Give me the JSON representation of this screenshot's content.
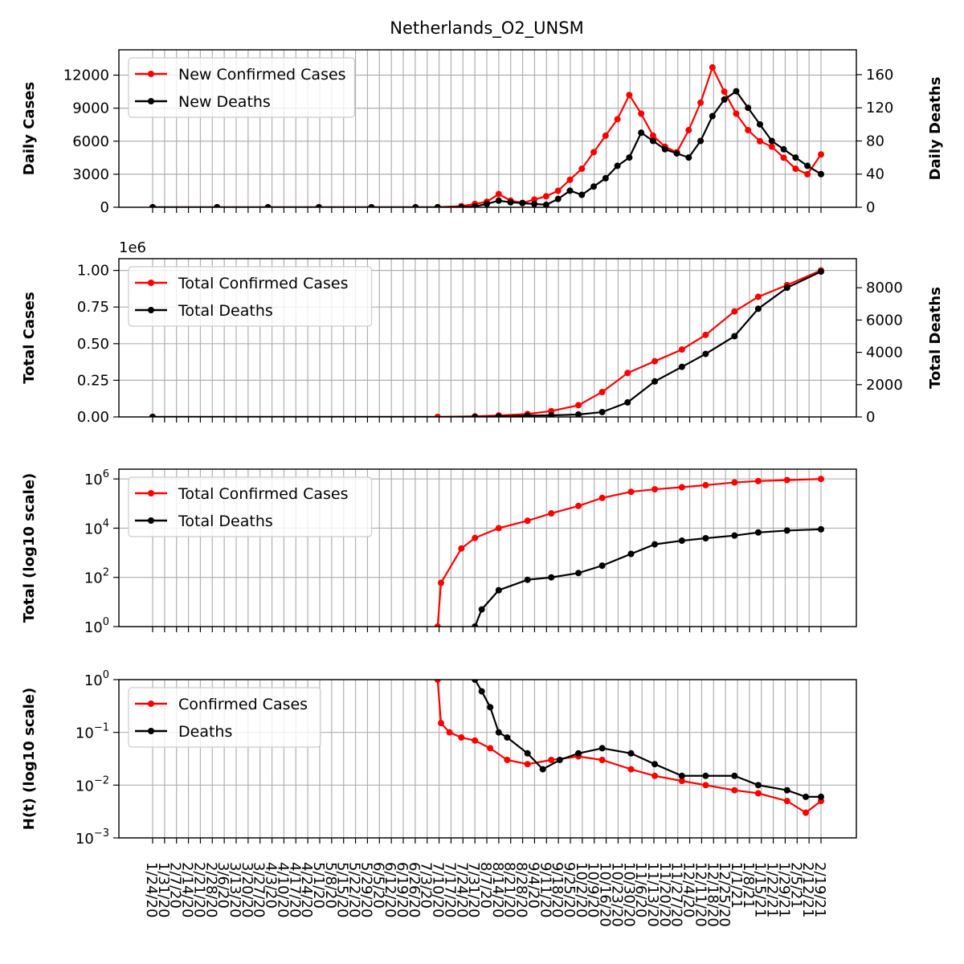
{
  "figure": {
    "title": "Netherlands_O2_UNSM"
  },
  "colors": {
    "cases": "#ff0000",
    "deaths": "#000000",
    "grid": "#b0b0b0"
  },
  "chart_data": [
    {
      "type": "line",
      "panel": "daily",
      "ylabel": "Daily Cases",
      "ylabel_right": "Daily Deaths",
      "ylim": [
        0,
        14300
      ],
      "ylim_right": [
        0,
        190
      ],
      "yticks": [
        "0",
        "3000",
        "6000",
        "9000",
        "12000"
      ],
      "yticks_right": [
        "0",
        "40",
        "80",
        "120",
        "160"
      ],
      "grid": true,
      "legend_position": "top-left",
      "series": [
        {
          "name": "New Confirmed Cases",
          "axis": "left",
          "color": "#ff0000",
          "x": [
            "1/24/20",
            "3/2/20",
            "4/1/20",
            "5/1/20",
            "6/1/20",
            "6/27/20",
            "7/10/20",
            "7/24/20",
            "8/1/20",
            "8/8/20",
            "8/15/20",
            "8/22/20",
            "8/29/20",
            "9/5/20",
            "9/12/20",
            "9/19/20",
            "9/26/20",
            "10/3/20",
            "10/10/20",
            "10/17/20",
            "10/24/20",
            "10/31/20",
            "11/7/20",
            "11/14/20",
            "11/21/20",
            "11/28/20",
            "12/5/20",
            "12/12/20",
            "12/19/20",
            "12/26/20",
            "1/2/21",
            "1/9/21",
            "1/16/21",
            "1/23/21",
            "1/30/21",
            "2/6/21",
            "2/13/21",
            "2/21/21"
          ],
          "values": [
            0,
            0,
            0,
            0,
            0,
            0,
            10,
            100,
            300,
            500,
            1200,
            600,
            400,
            700,
            1000,
            1500,
            2500,
            3500,
            5000,
            6500,
            8000,
            10200,
            8500,
            6500,
            5500,
            5000,
            7000,
            9500,
            12700,
            10500,
            8500,
            7000,
            6000,
            5500,
            4500,
            3500,
            3000,
            4800
          ]
        },
        {
          "name": "New Deaths",
          "axis": "right",
          "color": "#000000",
          "x": [
            "1/24/20",
            "3/2/20",
            "4/1/20",
            "5/1/20",
            "6/1/20",
            "6/27/20",
            "7/10/20",
            "7/24/20",
            "8/1/20",
            "8/8/20",
            "8/15/20",
            "8/22/20",
            "8/29/20",
            "9/5/20",
            "9/12/20",
            "9/19/20",
            "9/26/20",
            "10/3/20",
            "10/10/20",
            "10/17/20",
            "10/24/20",
            "10/31/20",
            "11/7/20",
            "11/14/20",
            "11/21/20",
            "11/28/20",
            "12/5/20",
            "12/12/20",
            "12/19/20",
            "12/26/20",
            "1/2/21",
            "1/9/21",
            "1/16/21",
            "1/23/21",
            "1/30/21",
            "2/6/21",
            "2/13/21",
            "2/21/21"
          ],
          "values": [
            0,
            0,
            0,
            0,
            0,
            0,
            0,
            0,
            1,
            4,
            8,
            6,
            5,
            4,
            3,
            10,
            20,
            15,
            25,
            35,
            50,
            60,
            90,
            80,
            70,
            65,
            60,
            80,
            110,
            130,
            140,
            120,
            100,
            80,
            70,
            60,
            50,
            40
          ]
        }
      ]
    },
    {
      "type": "line",
      "panel": "total",
      "ylabel": "Total Cases",
      "ylabel_right": "Total Deaths",
      "offset_label": "1e6",
      "ylim": [
        0,
        1.08
      ],
      "ylim_right": [
        0,
        9800
      ],
      "yticks": [
        "0.00",
        "0.25",
        "0.50",
        "0.75",
        "1.00"
      ],
      "yticks_right": [
        "0",
        "2000",
        "4000",
        "6000",
        "8000"
      ],
      "grid": true,
      "legend_position": "top-left",
      "series": [
        {
          "name": "Total Confirmed Cases",
          "axis": "left",
          "color": "#ff0000",
          "x": [
            "1/24/20",
            "7/10/20",
            "8/1/20",
            "8/15/20",
            "9/1/20",
            "9/15/20",
            "10/1/20",
            "10/15/20",
            "10/30/20",
            "11/15/20",
            "12/1/20",
            "12/15/20",
            "1/1/21",
            "1/15/21",
            "2/1/21",
            "2/21/21"
          ],
          "values": [
            0,
            0.0001,
            0.004,
            0.01,
            0.02,
            0.04,
            0.08,
            0.17,
            0.3,
            0.38,
            0.46,
            0.56,
            0.72,
            0.82,
            0.9,
            1.0
          ]
        },
        {
          "name": "Total Deaths",
          "axis": "right",
          "color": "#000000",
          "x": [
            "1/24/20",
            "8/1/20",
            "8/15/20",
            "9/1/20",
            "9/15/20",
            "10/1/20",
            "10/15/20",
            "10/30/20",
            "11/15/20",
            "12/1/20",
            "12/15/20",
            "1/1/21",
            "1/15/21",
            "2/1/21",
            "2/21/21"
          ],
          "values": [
            0,
            1,
            30,
            80,
            100,
            150,
            300,
            900,
            2200,
            3100,
            3900,
            5000,
            6700,
            8000,
            9000
          ]
        }
      ]
    },
    {
      "type": "line",
      "panel": "total-log",
      "ylabel": "Total (log10 scale)",
      "yscale": "log",
      "ylim": [
        1,
        2500000
      ],
      "yticks": [
        {
          "base": "10",
          "exp": "0"
        },
        {
          "base": "10",
          "exp": "2"
        },
        {
          "base": "10",
          "exp": "4"
        },
        {
          "base": "10",
          "exp": "6"
        }
      ],
      "grid": true,
      "legend_position": "top-left",
      "series": [
        {
          "name": "Total Confirmed Cases",
          "color": "#ff0000",
          "x": [
            "7/10/20",
            "7/12/20",
            "7/24/20",
            "8/1/20",
            "8/15/20",
            "9/1/20",
            "9/15/20",
            "10/1/20",
            "10/15/20",
            "11/1/20",
            "11/15/20",
            "12/1/20",
            "12/15/20",
            "1/1/21",
            "1/15/21",
            "2/1/21",
            "2/21/21"
          ],
          "values": [
            1,
            60,
            1500,
            4000,
            10000,
            20000,
            40000,
            80000,
            170000,
            300000,
            380000,
            460000,
            560000,
            720000,
            820000,
            900000,
            1000000
          ]
        },
        {
          "name": "Total Deaths",
          "color": "#000000",
          "x": [
            "8/1/20",
            "8/5/20",
            "8/15/20",
            "9/1/20",
            "9/15/20",
            "10/1/20",
            "10/15/20",
            "11/1/20",
            "11/15/20",
            "12/1/20",
            "12/15/20",
            "1/1/21",
            "1/15/21",
            "2/1/21",
            "2/21/21"
          ],
          "values": [
            1,
            5,
            30,
            80,
            100,
            150,
            300,
            900,
            2200,
            3100,
            3900,
            5000,
            6700,
            8000,
            9000
          ]
        }
      ]
    },
    {
      "type": "line",
      "panel": "hazard",
      "ylabel": "H(t) (log10 scale)",
      "yscale": "log",
      "ylim": [
        0.001,
        1
      ],
      "yticks": [
        {
          "base": "10",
          "exp": "−3"
        },
        {
          "base": "10",
          "exp": "−2"
        },
        {
          "base": "10",
          "exp": "−1"
        },
        {
          "base": "10",
          "exp": "0"
        }
      ],
      "grid": true,
      "legend_position": "top-left",
      "series": [
        {
          "name": "Confirmed Cases",
          "color": "#ff0000",
          "x": [
            "7/10/20",
            "7/12/20",
            "7/17/20",
            "7/24/20",
            "8/1/20",
            "8/10/20",
            "8/20/20",
            "9/1/20",
            "9/15/20",
            "10/1/20",
            "10/15/20",
            "11/1/20",
            "11/15/20",
            "12/1/20",
            "12/15/20",
            "1/1/21",
            "1/15/21",
            "2/1/21",
            "2/12/21",
            "2/21/21"
          ],
          "values": [
            1,
            0.15,
            0.1,
            0.08,
            0.07,
            0.05,
            0.03,
            0.025,
            0.03,
            0.035,
            0.03,
            0.02,
            0.015,
            0.012,
            0.01,
            0.008,
            0.007,
            0.005,
            0.003,
            0.005
          ]
        },
        {
          "name": "Deaths",
          "color": "#000000",
          "x": [
            "8/1/20",
            "8/5/20",
            "8/10/20",
            "8/15/20",
            "8/20/20",
            "9/1/20",
            "9/10/20",
            "9/20/20",
            "10/1/20",
            "10/15/20",
            "11/1/20",
            "11/15/20",
            "12/1/20",
            "12/15/20",
            "1/1/21",
            "1/15/21",
            "2/1/21",
            "2/12/21",
            "2/21/21"
          ],
          "values": [
            1,
            0.6,
            0.3,
            0.1,
            0.08,
            0.04,
            0.02,
            0.03,
            0.04,
            0.05,
            0.04,
            0.025,
            0.015,
            0.015,
            0.015,
            0.01,
            0.008,
            0.006,
            0.006
          ]
        }
      ]
    }
  ],
  "x_axis": {
    "tick_labels": [
      "1/24/20",
      "1/31/20",
      "2/7/20",
      "2/14/20",
      "2/21/20",
      "2/28/20",
      "3/6/20",
      "3/13/20",
      "3/20/20",
      "3/27/20",
      "4/3/20",
      "4/10/20",
      "4/17/20",
      "4/24/20",
      "5/1/20",
      "5/8/20",
      "5/15/20",
      "5/22/20",
      "5/29/20",
      "6/5/20",
      "6/12/20",
      "6/19/20",
      "6/26/20",
      "7/3/20",
      "7/10/20",
      "7/17/20",
      "7/24/20",
      "7/31/20",
      "8/7/20",
      "8/14/20",
      "8/21/20",
      "8/28/20",
      "9/4/20",
      "9/11/20",
      "9/18/20",
      "9/25/20",
      "10/2/20",
      "10/9/20",
      "10/16/20",
      "10/23/20",
      "10/30/20",
      "11/6/20",
      "11/13/20",
      "11/20/20",
      "11/27/20",
      "12/4/20",
      "12/11/20",
      "12/18/20",
      "12/25/20",
      "1/1/21",
      "1/8/21",
      "1/15/21",
      "1/22/21",
      "1/29/21",
      "2/5/21",
      "2/12/21",
      "2/19/21"
    ]
  }
}
